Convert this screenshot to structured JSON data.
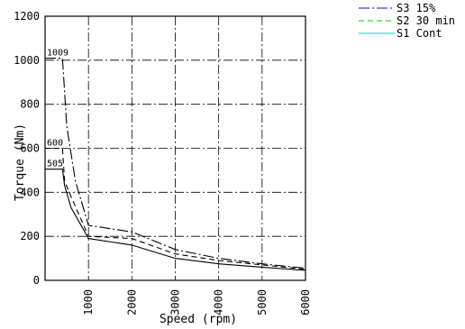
{
  "chart_data": {
    "type": "line",
    "xlabel": "Speed (rpm)",
    "ylabel": "Torque (Nm)",
    "xlim": [
      0,
      6000
    ],
    "ylim": [
      0,
      1200
    ],
    "x_ticks": [
      "1000",
      "2000",
      "3000",
      "4000",
      "5000",
      "6000"
    ],
    "x_tick_values": [
      1000,
      2000,
      3000,
      4000,
      5000,
      6000
    ],
    "y_ticks": [
      "0",
      "200",
      "400",
      "600",
      "800",
      "1000",
      "1200"
    ],
    "y_tick_values": [
      0,
      200,
      400,
      600,
      800,
      1000,
      1200
    ],
    "grid": true,
    "legend_position": "top-right",
    "annotations": [
      {
        "text": "1009",
        "x": 0,
        "y": 1009
      },
      {
        "text": "600",
        "x": 0,
        "y": 600
      },
      {
        "text": "505",
        "x": 0,
        "y": 505
      }
    ],
    "series": [
      {
        "name": "S3 15%",
        "color": "#3b3bd6",
        "style": "dashdot",
        "x": [
          0,
          400,
          500,
          700,
          1000,
          2000,
          3000,
          4000,
          5000,
          6000
        ],
        "y": [
          1009,
          1009,
          700,
          450,
          250,
          220,
          140,
          100,
          75,
          55
        ]
      },
      {
        "name": "S2 30 min",
        "color": "#33dd33",
        "style": "dashed",
        "x": [
          0,
          400,
          450,
          600,
          1000,
          2000,
          3000,
          4000,
          5000,
          6000
        ],
        "y": [
          600,
          600,
          450,
          380,
          200,
          190,
          120,
          90,
          70,
          50
        ]
      },
      {
        "name": "S1 Cont",
        "color": "#33ddcc",
        "style": "solid",
        "x": [
          0,
          400,
          450,
          600,
          1000,
          2000,
          3000,
          4000,
          5000,
          6000
        ],
        "y": [
          505,
          505,
          430,
          330,
          190,
          160,
          100,
          75,
          60,
          45
        ]
      }
    ]
  }
}
